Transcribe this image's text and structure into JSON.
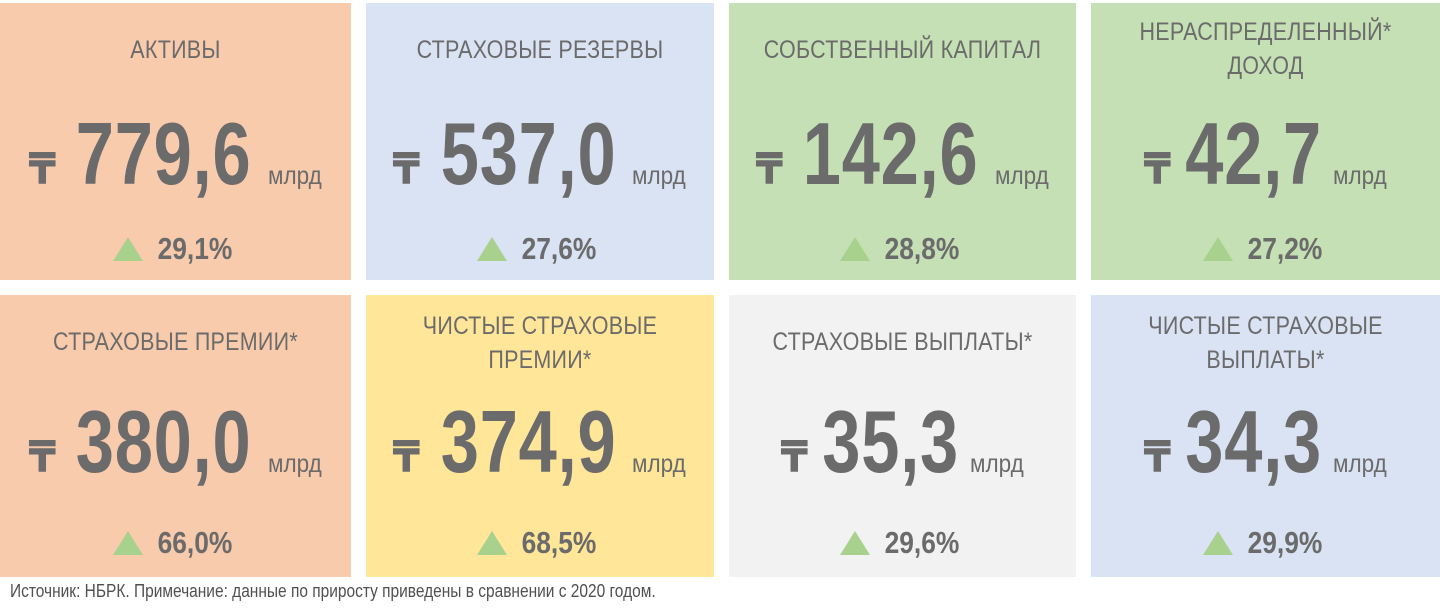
{
  "currency_symbol": "₸",
  "unit": "млрд",
  "colors": {
    "peach": "#f8cbad",
    "light_blue": "#dae3f3",
    "light_green": "#c5e0b4",
    "yellow": "#ffe699",
    "light_gray": "#f2f2f2",
    "text": "#6b6b6b",
    "up_arrow": "#a9d18e"
  },
  "tiles": [
    {
      "title": "АКТИВЫ",
      "value": "779,6",
      "change": "29,1%",
      "color": "#f8cbad"
    },
    {
      "title": "СТРАХОВЫЕ РЕЗЕРВЫ",
      "value": "537,0",
      "change": "27,6%",
      "color": "#dae3f3"
    },
    {
      "title": "СОБСТВЕННЫЙ КАПИТАЛ",
      "value": "142,6",
      "change": "28,8%",
      "color": "#c5e0b4"
    },
    {
      "title": "НЕРАСПРЕДЕЛЕННЫЙ*\nДОХОД",
      "value": "42,7",
      "change": "27,2%",
      "color": "#c5e0b4"
    },
    {
      "title": "СТРАХОВЫЕ ПРЕМИИ*",
      "value": "380,0",
      "change": "66,0%",
      "color": "#f8cbad"
    },
    {
      "title": "ЧИСТЫЕ СТРАХОВЫЕ\nПРЕМИИ*",
      "value": "374,9",
      "change": "68,5%",
      "color": "#ffe699"
    },
    {
      "title": "СТРАХОВЫЕ ВЫПЛАТЫ*",
      "value": "35,3",
      "change": "29,6%",
      "color": "#f2f2f2"
    },
    {
      "title": "ЧИСТЫЕ СТРАХОВЫЕ\nВЫПЛАТЫ*",
      "value": "34,3",
      "change": "29,9%",
      "color": "#dae3f3"
    }
  ],
  "footnote": "Источник: НБРК. Примечание: данные по приросту приведены в сравнении с 2020 годом."
}
